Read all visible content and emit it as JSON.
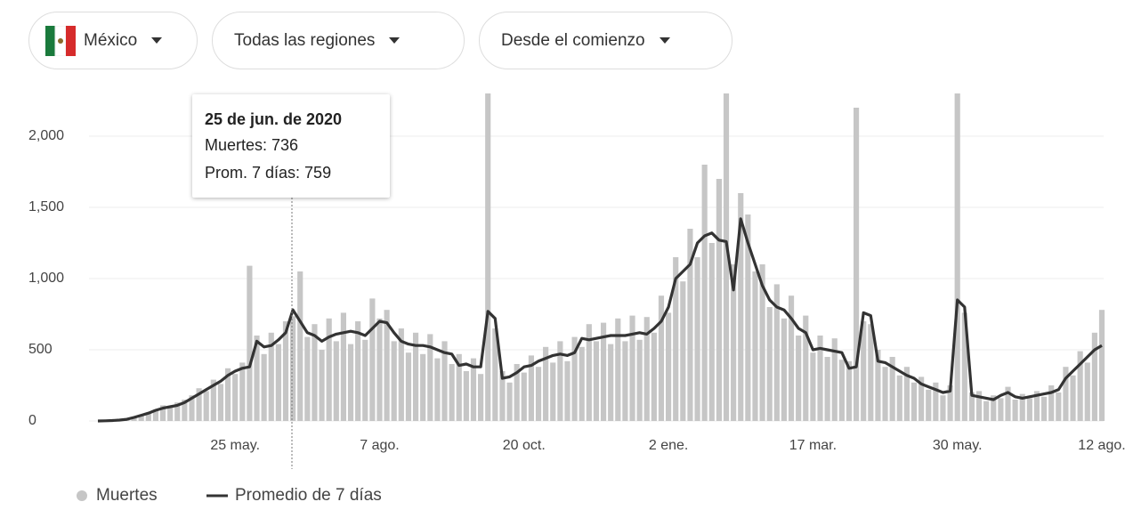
{
  "controls": {
    "country": "México",
    "region": "Todas las regiones",
    "period": "Desde el comienzo"
  },
  "chart_data": {
    "type": "bar",
    "tooltip": {
      "date": "25 de jun. de 2020",
      "lines": [
        "Muertes: 736",
        "Prom. 7 días: 759"
      ]
    },
    "categories": [
      null,
      null,
      null,
      null,
      null,
      null,
      null,
      null,
      null,
      null,
      null,
      null,
      null,
      null,
      null,
      null,
      null,
      null,
      null,
      "25 may.",
      null,
      null,
      null,
      null,
      null,
      null,
      null,
      null,
      null,
      null,
      null,
      null,
      null,
      null,
      null,
      null,
      null,
      null,
      null,
      "7 ago.",
      null,
      null,
      null,
      null,
      null,
      null,
      null,
      null,
      null,
      null,
      null,
      null,
      null,
      null,
      null,
      null,
      null,
      null,
      null,
      "20 oct.",
      null,
      null,
      null,
      null,
      null,
      null,
      null,
      null,
      null,
      null,
      null,
      null,
      null,
      null,
      null,
      null,
      null,
      null,
      null,
      "2 ene.",
      null,
      null,
      null,
      null,
      null,
      null,
      null,
      null,
      null,
      null,
      null,
      null,
      null,
      null,
      null,
      null,
      null,
      null,
      null,
      "17 mar.",
      null,
      null,
      null,
      null,
      null,
      null,
      null,
      null,
      null,
      null,
      null,
      null,
      null,
      null,
      null,
      null,
      null,
      null,
      null,
      "30 may.",
      null,
      null,
      null,
      null,
      null,
      null,
      null,
      null,
      null,
      null,
      null,
      null,
      null,
      null,
      null,
      null,
      null,
      null,
      null,
      "12 ago."
    ],
    "series": [
      {
        "name": "Muertes",
        "type": "bar",
        "color": "#c6c6c6",
        "values": [
          0,
          2,
          4,
          8,
          15,
          30,
          45,
          60,
          80,
          110,
          95,
          130,
          150,
          180,
          230,
          210,
          290,
          260,
          370,
          330,
          410,
          1090,
          600,
          470,
          620,
          540,
          700,
          736,
          1050,
          590,
          680,
          500,
          720,
          560,
          760,
          540,
          700,
          570,
          860,
          720,
          780,
          560,
          650,
          480,
          620,
          470,
          610,
          440,
          560,
          400,
          470,
          350,
          440,
          330,
          2300,
          650,
          350,
          270,
          400,
          340,
          460,
          380,
          520,
          410,
          560,
          420,
          590,
          520,
          680,
          560,
          690,
          540,
          720,
          560,
          740,
          570,
          730,
          620,
          880,
          760,
          1150,
          980,
          1350,
          1150,
          1800,
          1250,
          1700,
          2300,
          1100,
          1600,
          1450,
          1050,
          1100,
          800,
          960,
          720,
          880,
          600,
          740,
          480,
          600,
          450,
          580,
          430,
          420,
          2200,
          700,
          680,
          500,
          380,
          450,
          320,
          380,
          270,
          310,
          220,
          270,
          180,
          250,
          2300,
          760,
          200,
          210,
          140,
          180,
          160,
          240,
          150,
          190,
          160,
          210,
          170,
          250,
          200,
          380,
          320,
          490,
          410,
          620,
          780
        ]
      },
      {
        "name": "Promedio de 7 días",
        "type": "line",
        "color": "#333333",
        "values": [
          0,
          1,
          3,
          6,
          12,
          25,
          40,
          55,
          75,
          90,
          100,
          110,
          130,
          160,
          190,
          220,
          250,
          280,
          320,
          350,
          370,
          380,
          560,
          520,
          530,
          570,
          620,
          780,
          700,
          620,
          600,
          560,
          590,
          610,
          620,
          630,
          620,
          600,
          650,
          700,
          690,
          620,
          560,
          540,
          530,
          530,
          520,
          500,
          480,
          470,
          390,
          400,
          380,
          380,
          770,
          720,
          300,
          310,
          340,
          380,
          390,
          420,
          440,
          460,
          470,
          460,
          480,
          580,
          570,
          580,
          590,
          600,
          600,
          600,
          610,
          620,
          610,
          650,
          700,
          800,
          1000,
          1050,
          1100,
          1250,
          1300,
          1320,
          1270,
          1260,
          920,
          1420,
          1250,
          1100,
          950,
          850,
          800,
          780,
          720,
          650,
          620,
          500,
          510,
          500,
          490,
          480,
          370,
          380,
          760,
          740,
          420,
          410,
          380,
          350,
          320,
          300,
          260,
          240,
          220,
          200,
          210,
          850,
          800,
          180,
          170,
          160,
          150,
          180,
          200,
          170,
          160,
          170,
          180,
          190,
          200,
          220,
          300,
          350,
          400,
          450,
          500,
          530
        ]
      }
    ],
    "ylim": [
      0,
      2300
    ],
    "yticks": [
      0,
      500,
      {
        "value": 1000,
        "label": "1,000"
      },
      {
        "value": 1500,
        "label": "1,500"
      },
      {
        "value": 2000,
        "label": "2,000"
      }
    ],
    "grid": true
  }
}
